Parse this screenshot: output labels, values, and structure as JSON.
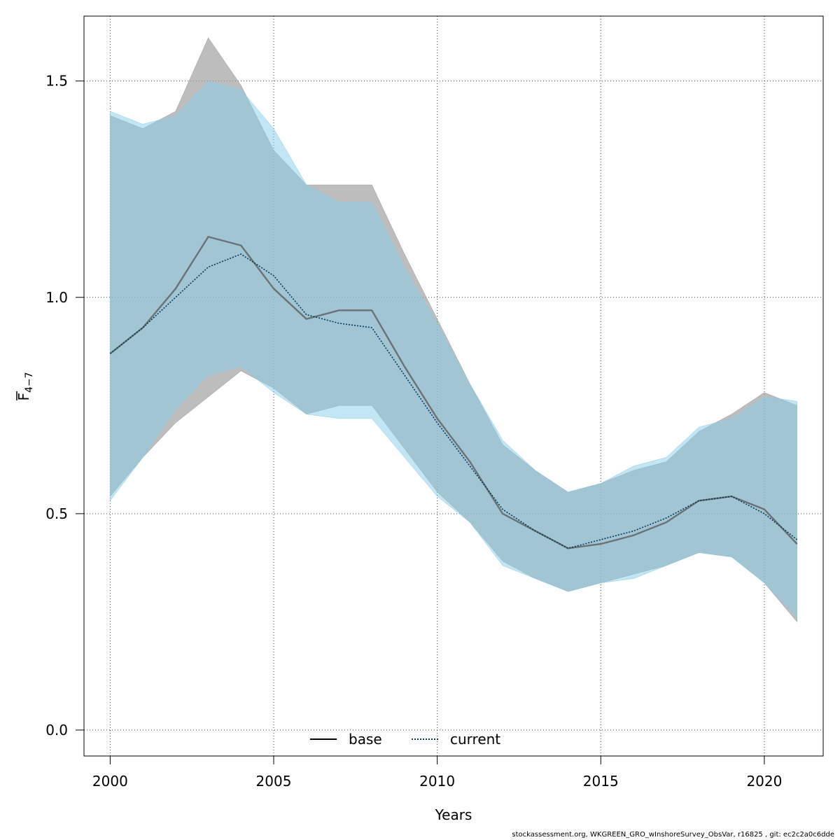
{
  "chart_data": {
    "type": "line",
    "xlabel": "Years",
    "ylabel_main": "F",
    "ylabel_sub": "4−7",
    "xlim": [
      1999.2,
      2021.8
    ],
    "ylim": [
      -0.06,
      1.65
    ],
    "x_ticks": [
      2000,
      2005,
      2010,
      2015,
      2020
    ],
    "y_ticks": [
      0.0,
      0.5,
      1.0,
      1.5
    ],
    "y_tick_labels": [
      "0.0",
      "0.5",
      "1.0",
      "1.5"
    ],
    "grid": true,
    "legend_position": "bottom-center",
    "years": [
      2000,
      2001,
      2002,
      2003,
      2004,
      2005,
      2006,
      2007,
      2008,
      2009,
      2010,
      2011,
      2012,
      2013,
      2014,
      2015,
      2016,
      2017,
      2018,
      2019,
      2020,
      2021
    ],
    "series": [
      {
        "name": "base",
        "line_style": "solid",
        "line_color": "#555555",
        "band_color": "#999999",
        "band_opacity": 0.65,
        "values": [
          0.87,
          0.93,
          1.02,
          1.14,
          1.12,
          1.02,
          0.95,
          0.97,
          0.97,
          0.84,
          0.72,
          0.62,
          0.5,
          0.46,
          0.42,
          0.43,
          0.45,
          0.48,
          0.53,
          0.54,
          0.51,
          0.43
        ],
        "lower": [
          0.54,
          0.63,
          0.71,
          0.77,
          0.83,
          0.79,
          0.73,
          0.75,
          0.75,
          0.65,
          0.55,
          0.48,
          0.39,
          0.35,
          0.32,
          0.34,
          0.36,
          0.38,
          0.41,
          0.4,
          0.34,
          0.25
        ],
        "upper": [
          1.42,
          1.39,
          1.43,
          1.6,
          1.49,
          1.34,
          1.26,
          1.26,
          1.26,
          1.1,
          0.95,
          0.8,
          0.66,
          0.6,
          0.55,
          0.57,
          0.6,
          0.62,
          0.69,
          0.73,
          0.78,
          0.75
        ]
      },
      {
        "name": "current",
        "line_style": "dotted",
        "line_color": "#003c5a",
        "band_color": "#87ceeb",
        "band_opacity": 0.5,
        "values": [
          0.87,
          0.93,
          1.0,
          1.07,
          1.1,
          1.05,
          0.96,
          0.94,
          0.93,
          0.82,
          0.71,
          0.61,
          0.51,
          0.46,
          0.42,
          0.44,
          0.46,
          0.49,
          0.53,
          0.54,
          0.5,
          0.44
        ],
        "lower": [
          0.53,
          0.63,
          0.74,
          0.82,
          0.84,
          0.78,
          0.73,
          0.72,
          0.72,
          0.63,
          0.54,
          0.48,
          0.38,
          0.35,
          0.32,
          0.34,
          0.35,
          0.38,
          0.41,
          0.4,
          0.34,
          0.26
        ],
        "upper": [
          1.43,
          1.4,
          1.42,
          1.5,
          1.48,
          1.39,
          1.26,
          1.22,
          1.22,
          1.07,
          0.94,
          0.8,
          0.67,
          0.6,
          0.55,
          0.57,
          0.61,
          0.63,
          0.7,
          0.72,
          0.77,
          0.76
        ]
      }
    ]
  },
  "legend": {
    "base_label": "base",
    "current_label": "current"
  },
  "footer": {
    "credit": "stockassessment.org, WKGREEN_GRO_wInshoreSurvey_ObsVar, r16825 , git: ec2c2a0c6dde"
  }
}
